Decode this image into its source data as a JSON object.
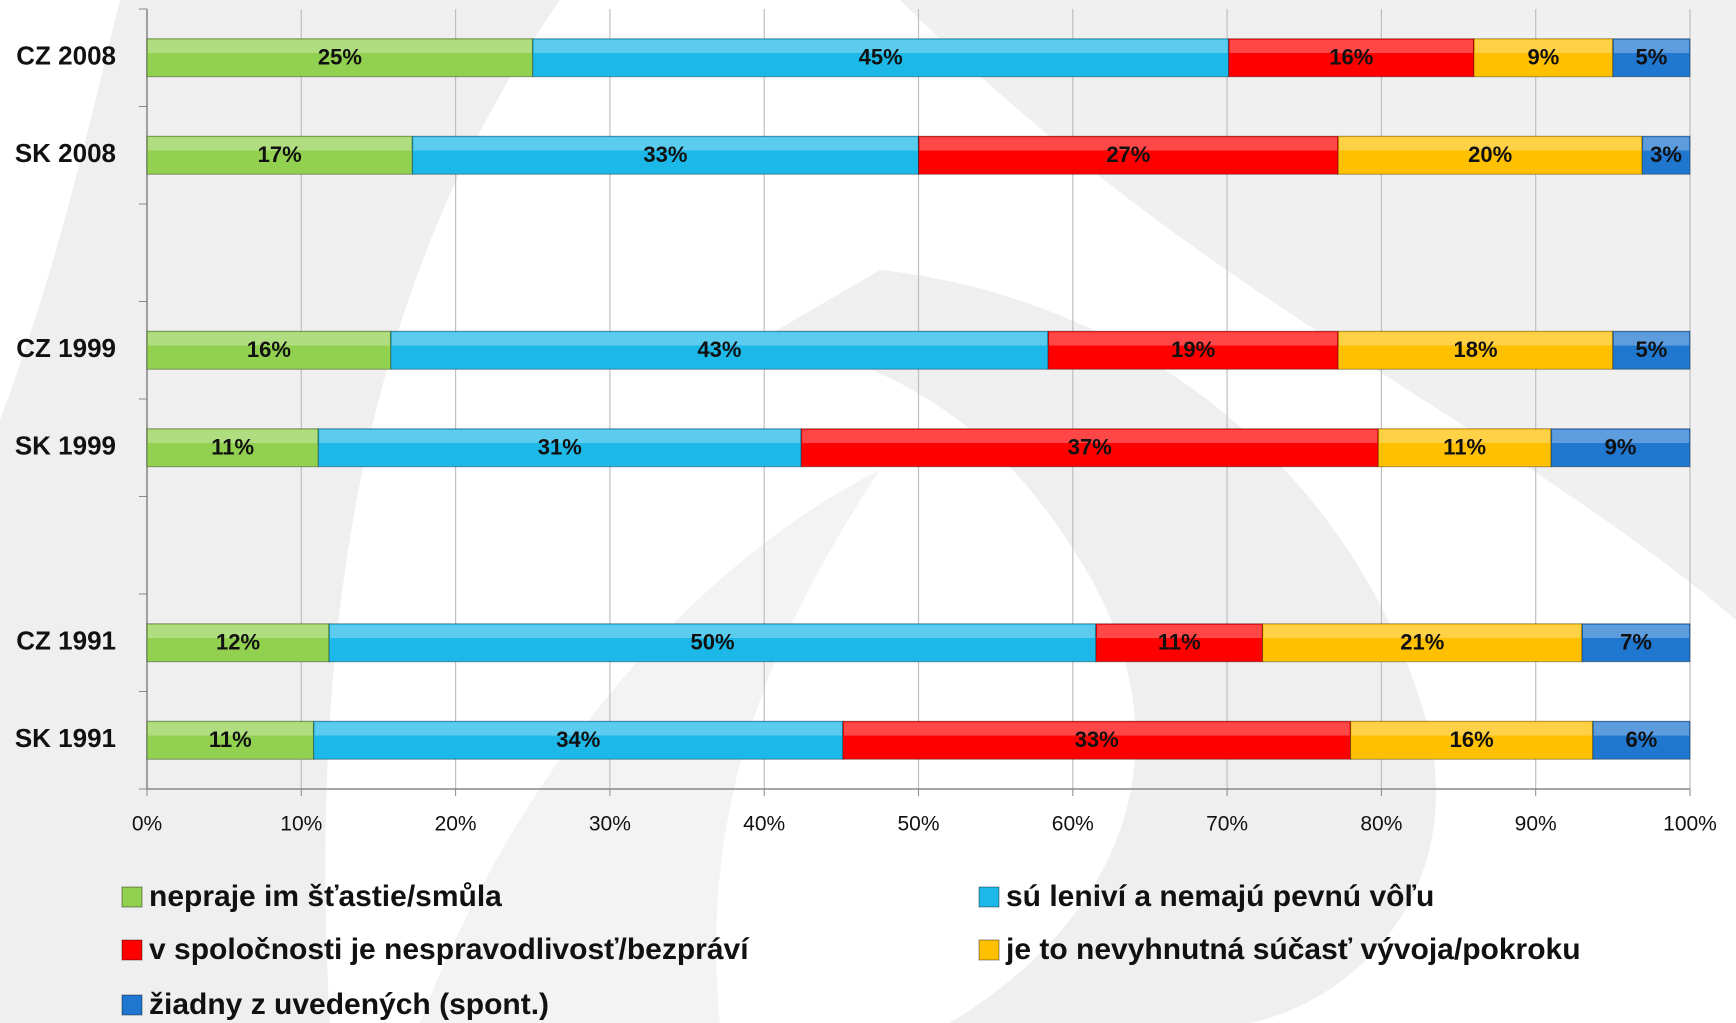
{
  "chart_data": {
    "type": "stacked-bar",
    "orientation": "horizontal",
    "categories": [
      "CZ 2008",
      "SK 2008",
      null,
      "CZ 1999",
      "SK 1999",
      null,
      "CZ 1991",
      "SK 1991"
    ],
    "series": [
      {
        "name": "nepraje im šťastie/smůla",
        "color": "#92d050",
        "values": [
          25,
          17.2,
          null,
          15.8,
          11.1,
          null,
          11.8,
          10.8
        ],
        "value_labels": [
          "25%",
          "17%",
          null,
          "16%",
          "11%",
          null,
          "12%",
          "11%"
        ]
      },
      {
        "name": "sú leniví a nemajú pevnú vôľu",
        "color": "#1cb8e8",
        "values": [
          45.1,
          32.8,
          null,
          42.6,
          31.3,
          null,
          49.7,
          34.3
        ],
        "value_labels": [
          "45%",
          "33%",
          null,
          "43%",
          "31%",
          null,
          "50%",
          "34%"
        ]
      },
      {
        "name": "v spoločnosti je nespravodlivosť/bezpráví",
        "color": "#ff0000",
        "values": [
          15.9,
          27.2,
          null,
          18.8,
          37.4,
          null,
          10.8,
          32.9
        ],
        "value_labels": [
          "16%",
          "27%",
          null,
          "19%",
          "37%",
          null,
          "11%",
          "33%"
        ]
      },
      {
        "name": "je to nevyhnutná súčasť vývoja/pokroku",
        "color": "#ffc000",
        "values": [
          9,
          19.7,
          null,
          17.8,
          11.2,
          null,
          20.7,
          15.7
        ],
        "value_labels": [
          "9%",
          "20%",
          null,
          "18%",
          "11%",
          null,
          "21%",
          "16%"
        ]
      },
      {
        "name": "žiadny z uvedených (spont.)",
        "color": "#1f77d0",
        "values": [
          5,
          3.1,
          null,
          5,
          9,
          null,
          7,
          6.3
        ],
        "value_labels": [
          "5%",
          "3%",
          null,
          "5%",
          "9%",
          null,
          "7%",
          "6%"
        ]
      }
    ],
    "xlim": [
      0,
      100
    ],
    "xticks": [
      {
        "value": 0,
        "label": "0%"
      },
      {
        "value": 10,
        "label": "10%"
      },
      {
        "value": 20,
        "label": "20%"
      },
      {
        "value": 30,
        "label": "30%"
      },
      {
        "value": 40,
        "label": "40%"
      },
      {
        "value": 50,
        "label": "50%"
      },
      {
        "value": 60,
        "label": "60%"
      },
      {
        "value": 70,
        "label": "70%"
      },
      {
        "value": 80,
        "label": "80%"
      },
      {
        "value": 90,
        "label": "90%"
      },
      {
        "value": 100,
        "label": "100%"
      }
    ],
    "grid": true
  }
}
